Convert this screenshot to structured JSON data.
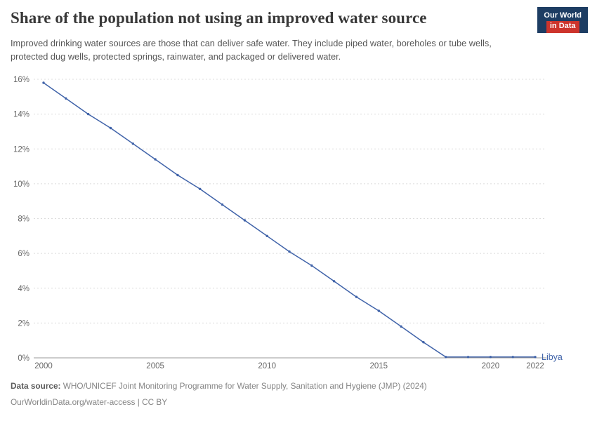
{
  "header": {
    "title": "Share of the population not using an improved water source",
    "subtitle": "Improved drinking water sources are those that can deliver safe water. They include piped water, boreholes or tube wells, protected dug wells, protected springs, rainwater, and packaged or delivered water.",
    "logo": {
      "line1": "Our World",
      "line2": "in Data",
      "bg_color": "#1d3d63",
      "accent_color": "#cd342c"
    }
  },
  "chart_data": {
    "type": "line",
    "title": "Share of the population not using an improved water source",
    "x": [
      2000,
      2001,
      2002,
      2003,
      2004,
      2005,
      2006,
      2007,
      2008,
      2009,
      2010,
      2011,
      2012,
      2013,
      2014,
      2015,
      2016,
      2017,
      2018,
      2019,
      2020,
      2021,
      2022
    ],
    "series": [
      {
        "name": "Libya",
        "color": "#4063a9",
        "values": [
          15.8,
          14.9,
          14.0,
          13.2,
          12.3,
          11.4,
          10.5,
          9.7,
          8.8,
          7.9,
          7.0,
          6.1,
          5.3,
          4.4,
          3.5,
          2.7,
          1.8,
          0.9,
          0.05,
          0.05,
          0.05,
          0.05,
          0.05
        ]
      }
    ],
    "xticks": [
      2000,
      2005,
      2010,
      2015,
      2020,
      2022
    ],
    "yticks": [
      0,
      2,
      4,
      6,
      8,
      10,
      12,
      14,
      16
    ],
    "ylim": [
      0,
      16
    ],
    "xlim": [
      2000,
      2022
    ],
    "ytick_suffix": "%",
    "grid": true,
    "legend_position": "end-of-line",
    "style": {
      "grid_color": "#dcdcdc",
      "axis_color": "#9a9a9a",
      "tick_text_color": "#666666"
    }
  },
  "footer": {
    "datasource_label": "Data source:",
    "datasource_text": " WHO/UNICEF Joint Monitoring Programme for Water Supply, Sanitation and Hygiene (JMP) (2024)",
    "license": "OurWorldinData.org/water-access | CC BY"
  }
}
